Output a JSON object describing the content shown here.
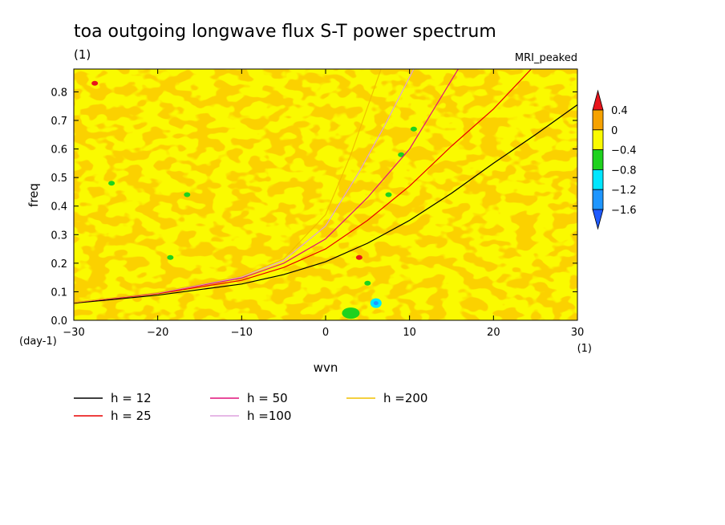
{
  "chart_data": {
    "type": "heatmap",
    "title": "toa outgoing longwave flux S-T power spectrum",
    "title_units": "(1)",
    "subtitle_right": "MRI_peaked",
    "xlabel": "wvn",
    "ylabel": "freq",
    "x_units": "(1)",
    "y_units": "(day-1)",
    "xlim": [
      -30,
      30
    ],
    "ylim": [
      0,
      0.88
    ],
    "xticks": [
      -30,
      -20,
      -10,
      0,
      10,
      20,
      30
    ],
    "yticks": [
      0.0,
      0.1,
      0.2,
      0.3,
      0.4,
      0.5,
      0.6,
      0.7,
      0.8
    ],
    "xtick_labels": [
      "−30",
      "−20",
      "−10",
      "0",
      "10",
      "20",
      "30"
    ],
    "ytick_labels": [
      "0.0",
      "0.1",
      "0.2",
      "0.3",
      "0.4",
      "0.5",
      "0.6",
      "0.7",
      "0.8"
    ],
    "colorbar": {
      "labels": [
        "0.4",
        "0",
        "−0.4",
        "−0.8",
        "−1.2",
        "−1.6"
      ],
      "levels": [
        0.4,
        0,
        -0.4,
        -0.8,
        -1.2,
        -1.6
      ],
      "colors": [
        "#e8141b",
        "#f6a200",
        "#fafa00",
        "#1ed21e",
        "#00e6ff",
        "#1e96ff",
        "#1e5aff"
      ]
    },
    "dispersion_curves": [
      {
        "name": "h = 12",
        "color": "#000000",
        "label": "h = 12",
        "x": [
          -30,
          -20,
          -10,
          -5,
          0,
          5,
          10,
          15,
          20,
          25,
          30
        ],
        "y": [
          0.06,
          0.088,
          0.127,
          0.16,
          0.205,
          0.27,
          0.35,
          0.445,
          0.55,
          0.65,
          0.755
        ]
      },
      {
        "name": "h = 25",
        "color": "#e80000",
        "label": "h = 25",
        "x": [
          -30,
          -20,
          -10,
          -5,
          0,
          5,
          10,
          15,
          20,
          24.5
        ],
        "y": [
          0.062,
          0.093,
          0.14,
          0.185,
          0.25,
          0.35,
          0.47,
          0.61,
          0.74,
          0.88
        ]
      },
      {
        "name": "h = 50",
        "color": "#e0107a",
        "label": "h = 50",
        "x": [
          -30,
          -20,
          -10,
          -5,
          0,
          5,
          10,
          15.8
        ],
        "y": [
          0.063,
          0.095,
          0.148,
          0.2,
          0.285,
          0.43,
          0.6,
          0.88
        ]
      },
      {
        "name": "h =100",
        "color": "#dda0dd",
        "label": "h =100",
        "x": [
          -30,
          -20,
          -10,
          -5,
          0,
          4,
          7,
          10.5
        ],
        "y": [
          0.063,
          0.096,
          0.152,
          0.21,
          0.33,
          0.52,
          0.68,
          0.88
        ]
      },
      {
        "name": "h =200",
        "color": "#f0c000",
        "label": "h =200",
        "x": [
          -30,
          -20,
          -10,
          -5,
          0,
          3,
          6,
          6.6
        ],
        "y": [
          0.063,
          0.097,
          0.155,
          0.215,
          0.37,
          0.58,
          0.83,
          0.88
        ]
      }
    ],
    "anomalies": [
      {
        "x": -27.5,
        "y": 0.83,
        "color": "#e8141b"
      },
      {
        "x": 4,
        "y": 0.22,
        "color": "#e8141b"
      },
      {
        "x": 6,
        "y": 0.06,
        "color": "#00e6ff"
      },
      {
        "x": 6,
        "y": 0.06,
        "color": "#1e96ff"
      },
      {
        "x": 3,
        "y": 0.025,
        "color": "#1ed21e"
      },
      {
        "x": 5,
        "y": 0.13,
        "color": "#1ed21e"
      },
      {
        "x": 7.5,
        "y": 0.44,
        "color": "#1ed21e"
      },
      {
        "x": 9,
        "y": 0.58,
        "color": "#1ed21e"
      },
      {
        "x": 10.5,
        "y": 0.67,
        "color": "#1ed21e"
      },
      {
        "x": -18.5,
        "y": 0.22,
        "color": "#1ed21e"
      },
      {
        "x": -25.5,
        "y": 0.48,
        "color": "#1ed21e"
      },
      {
        "x": -16.5,
        "y": 0.44,
        "color": "#1ed21e"
      }
    ]
  }
}
